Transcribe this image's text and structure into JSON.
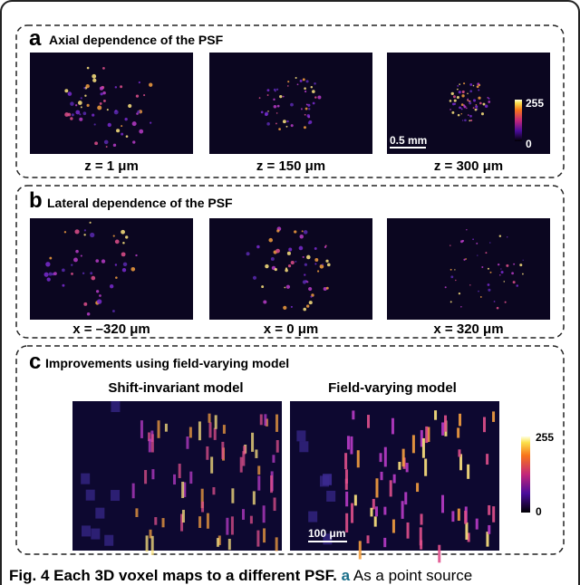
{
  "panels": [
    {
      "letter": "a",
      "title": "Axial dependence of the PSF",
      "captions": [
        "z = 1 μm",
        "z = 150 μm",
        "z = 300 μm"
      ],
      "scale_bar": "0.5 mm",
      "colorbar": {
        "max": "255",
        "min": "0"
      }
    },
    {
      "letter": "b",
      "title": "Lateral dependence of the PSF",
      "captions": [
        "x = –320 μm",
        "x = 0 μm",
        "x = 320 μm"
      ]
    },
    {
      "letter": "c",
      "title": "Improvements using field-varying model",
      "subtitles": [
        "Shift-invariant model",
        "Field-varying model"
      ],
      "scale_bar": "100 μm",
      "colorbar": {
        "max": "255",
        "min": "0"
      }
    }
  ],
  "caption": {
    "label": "Fig. 4",
    "title": "Each 3D voxel maps to a different PSF.",
    "panel": "a",
    "text": "As a point source"
  }
}
